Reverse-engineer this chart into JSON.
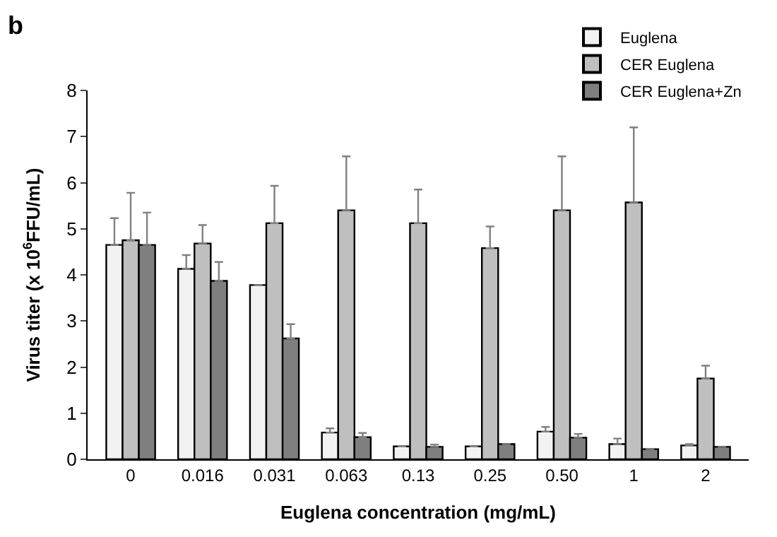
{
  "chart_data": {
    "type": "bar",
    "title": "b",
    "xlabel": "Euglena concentration (mg/mL)",
    "ylabel": "Virus titer (x 10$^{6}$FFU/mL)",
    "categories": [
      "0",
      "0.016",
      "0.031",
      "0.063",
      "0.13",
      "0.25",
      "0.50",
      "1",
      "2"
    ],
    "series": [
      {
        "name": "Euglena",
        "color": "#f2f2f2",
        "values": [
          4.65,
          4.13,
          3.78,
          0.58,
          0.28,
          0.28,
          0.6,
          0.33,
          0.3
        ],
        "errors": [
          [
            4.65,
            5.23
          ],
          [
            4.13,
            4.43
          ],
          null,
          [
            0.58,
            0.67
          ],
          null,
          null,
          [
            0.6,
            0.7
          ],
          [
            0.33,
            0.45
          ],
          [
            0.3,
            0.33
          ]
        ]
      },
      {
        "name": "CER Euglena",
        "color": "#bfbfbf",
        "values": [
          4.75,
          4.68,
          5.12,
          5.4,
          5.12,
          4.58,
          5.4,
          5.57,
          1.75
        ],
        "errors": [
          [
            4.75,
            5.78
          ],
          [
            4.68,
            5.08
          ],
          [
            5.12,
            5.93
          ],
          [
            5.4,
            6.57
          ],
          [
            5.12,
            5.85
          ],
          [
            4.58,
            5.05
          ],
          [
            5.4,
            6.57
          ],
          [
            5.57,
            7.2
          ],
          [
            1.75,
            2.03
          ]
        ]
      },
      {
        "name": "CER Euglena+Zn",
        "color": "#7f7f7f",
        "values": [
          4.65,
          3.87,
          2.62,
          0.48,
          0.27,
          0.33,
          0.47,
          0.22,
          0.27
        ],
        "errors": [
          [
            4.65,
            5.35
          ],
          [
            3.87,
            4.28
          ],
          [
            2.62,
            2.93
          ],
          [
            0.48,
            0.57
          ],
          [
            0.27,
            0.32
          ],
          null,
          [
            0.47,
            0.55
          ],
          null,
          null
        ]
      }
    ],
    "ylim": [
      0,
      8
    ],
    "yticks": [
      0,
      1,
      2,
      3,
      4,
      5,
      6,
      7,
      8
    ],
    "legend": "top right"
  }
}
